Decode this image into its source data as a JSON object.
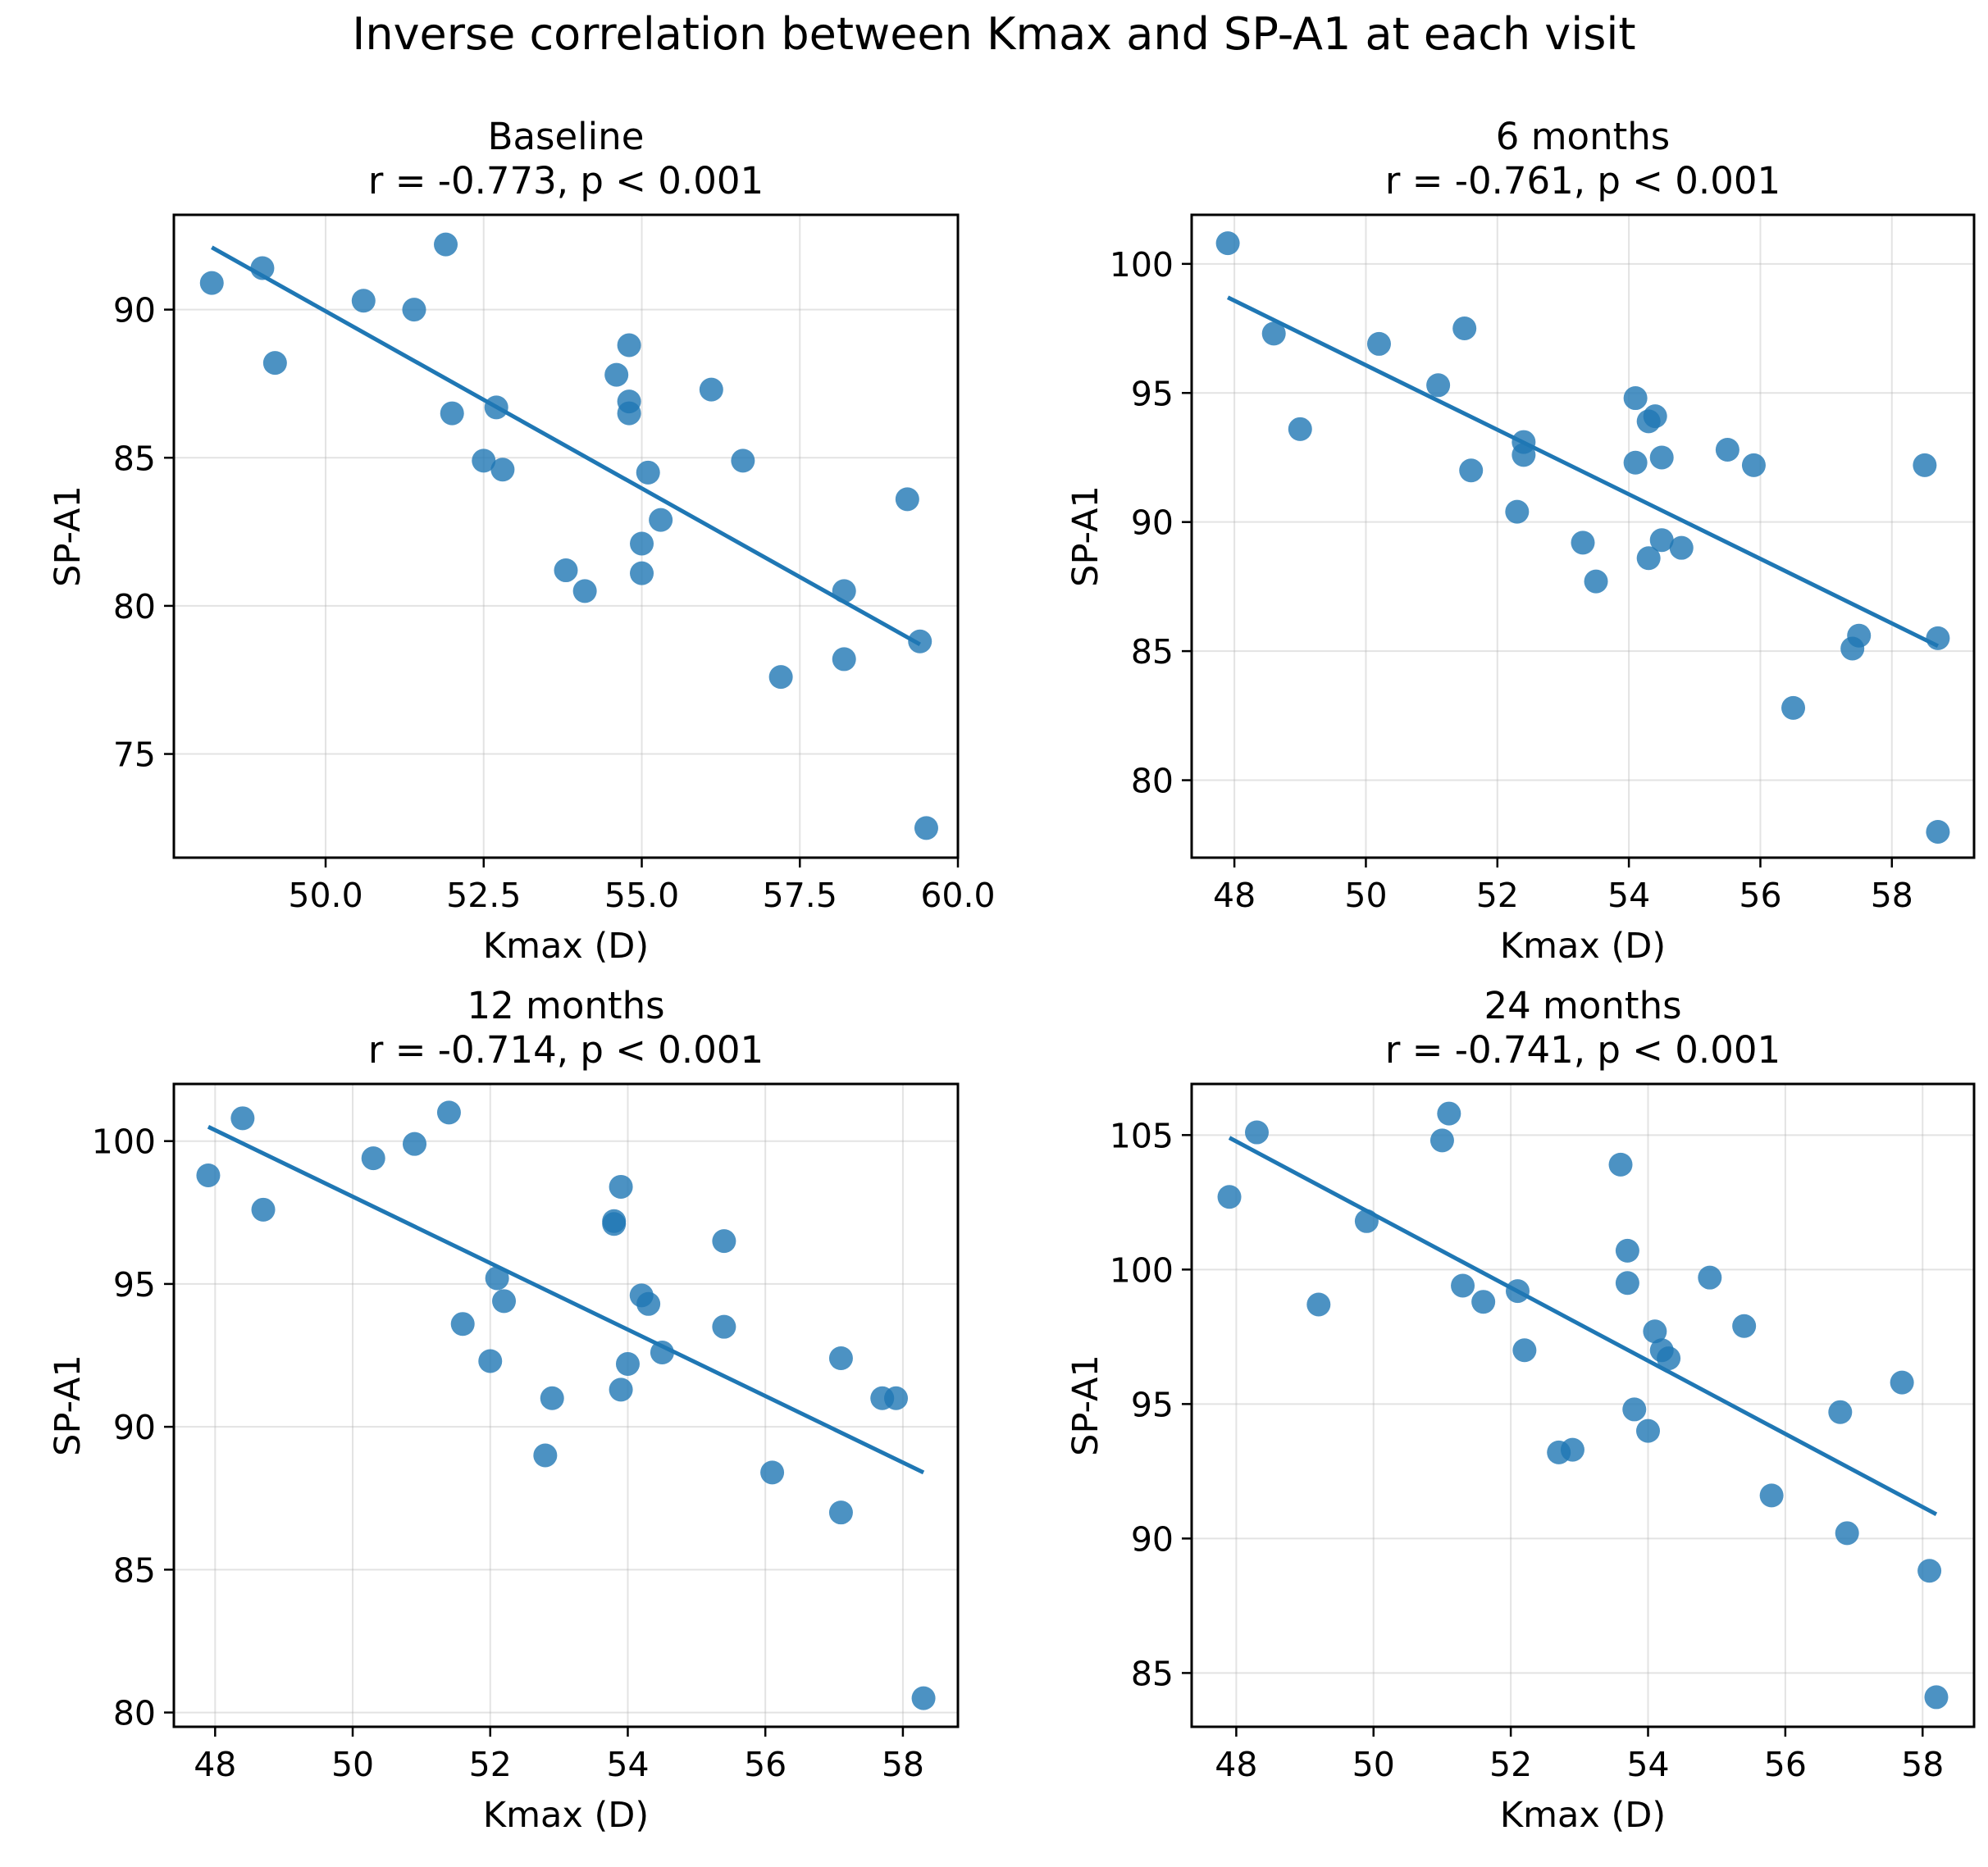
{
  "suptitle": "Inverse correlation between Kmax and SP-A1 at each visit",
  "colors": {
    "series": "#1f77b4"
  },
  "chart_data": [
    {
      "type": "scatter",
      "title": "Baseline",
      "subtitle": "r = -0.773, p < 0.001",
      "xlabel": "Kmax (D)",
      "ylabel": "SP-A1",
      "xlim": [
        47.6,
        60.0
      ],
      "ylim": [
        71.5,
        93.2
      ],
      "xticks": [
        50.0,
        52.5,
        55.0,
        57.5,
        60.0
      ],
      "xtick_labels": [
        "50.0",
        "52.5",
        "55.0",
        "57.5",
        "60.0"
      ],
      "yticks": [
        75,
        80,
        85,
        90
      ],
      "ytick_labels": [
        "75",
        "80",
        "85",
        "90"
      ],
      "grid": true,
      "points": [
        [
          48.2,
          90.9
        ],
        [
          49.0,
          91.4
        ],
        [
          49.2,
          88.2
        ],
        [
          50.6,
          90.3
        ],
        [
          51.4,
          90.0
        ],
        [
          51.9,
          92.2
        ],
        [
          52.0,
          86.5
        ],
        [
          52.5,
          84.9
        ],
        [
          52.7,
          86.7
        ],
        [
          52.8,
          84.6
        ],
        [
          53.8,
          81.2
        ],
        [
          54.1,
          80.5
        ],
        [
          54.6,
          87.8
        ],
        [
          54.8,
          88.8
        ],
        [
          54.8,
          86.9
        ],
        [
          54.8,
          86.5
        ],
        [
          55.0,
          82.1
        ],
        [
          55.0,
          81.1
        ],
        [
          55.1,
          84.5
        ],
        [
          55.3,
          82.9
        ],
        [
          56.1,
          87.3
        ],
        [
          56.6,
          84.9
        ],
        [
          57.2,
          77.6
        ],
        [
          58.2,
          80.5
        ],
        [
          58.2,
          78.2
        ],
        [
          59.2,
          83.6
        ],
        [
          59.4,
          78.8
        ],
        [
          59.5,
          72.5
        ]
      ],
      "fit_line": [
        [
          48.2,
          92.1
        ],
        [
          59.4,
          78.7
        ]
      ]
    },
    {
      "type": "scatter",
      "title": "6 months",
      "subtitle": "r = -0.761, p < 0.001",
      "xlabel": "Kmax (D)",
      "ylabel": "SP-A1",
      "xlim": [
        47.35,
        59.25
      ],
      "ylim": [
        77.0,
        101.9
      ],
      "xticks": [
        48,
        50,
        52,
        54,
        56,
        58
      ],
      "xtick_labels": [
        "48",
        "50",
        "52",
        "54",
        "56",
        "58"
      ],
      "yticks": [
        80,
        85,
        90,
        95,
        100
      ],
      "ytick_labels": [
        "80",
        "85",
        "90",
        "95",
        "100"
      ],
      "grid": true,
      "points": [
        [
          47.9,
          100.8
        ],
        [
          48.6,
          97.3
        ],
        [
          49.0,
          93.6
        ],
        [
          50.2,
          96.9
        ],
        [
          51.1,
          95.3
        ],
        [
          51.5,
          97.5
        ],
        [
          51.6,
          92.0
        ],
        [
          52.3,
          90.4
        ],
        [
          52.4,
          93.1
        ],
        [
          52.4,
          92.6
        ],
        [
          53.3,
          89.2
        ],
        [
          53.5,
          87.7
        ],
        [
          54.1,
          94.8
        ],
        [
          54.1,
          92.3
        ],
        [
          54.3,
          93.9
        ],
        [
          54.3,
          88.6
        ],
        [
          54.4,
          94.1
        ],
        [
          54.5,
          92.5
        ],
        [
          54.5,
          89.3
        ],
        [
          54.8,
          89.0
        ],
        [
          55.5,
          92.8
        ],
        [
          55.9,
          92.2
        ],
        [
          56.5,
          82.8
        ],
        [
          57.4,
          85.1
        ],
        [
          57.5,
          85.6
        ],
        [
          58.5,
          92.2
        ],
        [
          58.7,
          85.5
        ],
        [
          58.7,
          78.0
        ]
      ],
      "fit_line": [
        [
          47.9,
          98.7
        ],
        [
          58.7,
          85.2
        ]
      ]
    },
    {
      "type": "scatter",
      "title": "12 months",
      "subtitle": "r = -0.714, p < 0.001",
      "xlabel": "Kmax (D)",
      "ylabel": "SP-A1",
      "xlim": [
        47.4,
        58.8
      ],
      "ylim": [
        79.5,
        102.0
      ],
      "xticks": [
        48,
        50,
        52,
        54,
        56,
        58
      ],
      "xtick_labels": [
        "48",
        "50",
        "52",
        "54",
        "56",
        "58"
      ],
      "yticks": [
        80,
        85,
        90,
        95,
        100
      ],
      "ytick_labels": [
        "80",
        "85",
        "90",
        "95",
        "100"
      ],
      "grid": true,
      "points": [
        [
          47.9,
          98.8
        ],
        [
          48.4,
          100.8
        ],
        [
          48.7,
          97.6
        ],
        [
          50.3,
          99.4
        ],
        [
          50.9,
          99.9
        ],
        [
          51.4,
          101.0
        ],
        [
          51.6,
          93.6
        ],
        [
          52.0,
          92.3
        ],
        [
          52.1,
          95.2
        ],
        [
          52.2,
          94.4
        ],
        [
          52.8,
          89.0
        ],
        [
          52.9,
          91.0
        ],
        [
          53.8,
          97.1
        ],
        [
          53.8,
          97.2
        ],
        [
          53.9,
          98.4
        ],
        [
          53.9,
          91.3
        ],
        [
          54.0,
          92.2
        ],
        [
          54.2,
          94.6
        ],
        [
          54.3,
          94.3
        ],
        [
          54.5,
          92.6
        ],
        [
          55.4,
          96.5
        ],
        [
          55.4,
          93.5
        ],
        [
          56.1,
          88.4
        ],
        [
          57.1,
          92.4
        ],
        [
          57.1,
          87.0
        ],
        [
          57.7,
          91.0
        ],
        [
          57.9,
          91.0
        ],
        [
          58.3,
          80.5
        ]
      ],
      "fit_line": [
        [
          47.9,
          100.5
        ],
        [
          58.3,
          88.4
        ]
      ]
    },
    {
      "type": "scatter",
      "title": "24 months",
      "subtitle": "r = -0.741, p < 0.001",
      "xlabel": "Kmax (D)",
      "ylabel": "SP-A1",
      "xlim": [
        47.35,
        58.75
      ],
      "ylim": [
        83.0,
        106.9
      ],
      "xticks": [
        48,
        50,
        52,
        54,
        56,
        58
      ],
      "xtick_labels": [
        "48",
        "50",
        "52",
        "54",
        "56",
        "58"
      ],
      "yticks": [
        85,
        90,
        95,
        100,
        105
      ],
      "ytick_labels": [
        "85",
        "90",
        "95",
        "100",
        "105"
      ],
      "grid": true,
      "points": [
        [
          47.9,
          102.7
        ],
        [
          48.3,
          105.1
        ],
        [
          49.2,
          98.7
        ],
        [
          49.9,
          101.8
        ],
        [
          51.0,
          104.8
        ],
        [
          51.1,
          105.8
        ],
        [
          51.3,
          99.4
        ],
        [
          51.6,
          98.8
        ],
        [
          52.1,
          99.2
        ],
        [
          52.2,
          97.0
        ],
        [
          52.7,
          93.2
        ],
        [
          52.9,
          93.3
        ],
        [
          53.6,
          103.9
        ],
        [
          53.7,
          100.7
        ],
        [
          53.7,
          99.5
        ],
        [
          53.8,
          94.8
        ],
        [
          54.0,
          94.0
        ],
        [
          54.1,
          97.7
        ],
        [
          54.2,
          97.0
        ],
        [
          54.3,
          96.7
        ],
        [
          54.9,
          99.7
        ],
        [
          55.4,
          97.9
        ],
        [
          55.8,
          91.6
        ],
        [
          56.8,
          94.7
        ],
        [
          56.9,
          90.2
        ],
        [
          57.7,
          95.8
        ],
        [
          58.1,
          88.8
        ],
        [
          58.2,
          84.1
        ]
      ],
      "fit_line": [
        [
          47.9,
          104.9
        ],
        [
          58.2,
          90.9
        ]
      ]
    }
  ]
}
